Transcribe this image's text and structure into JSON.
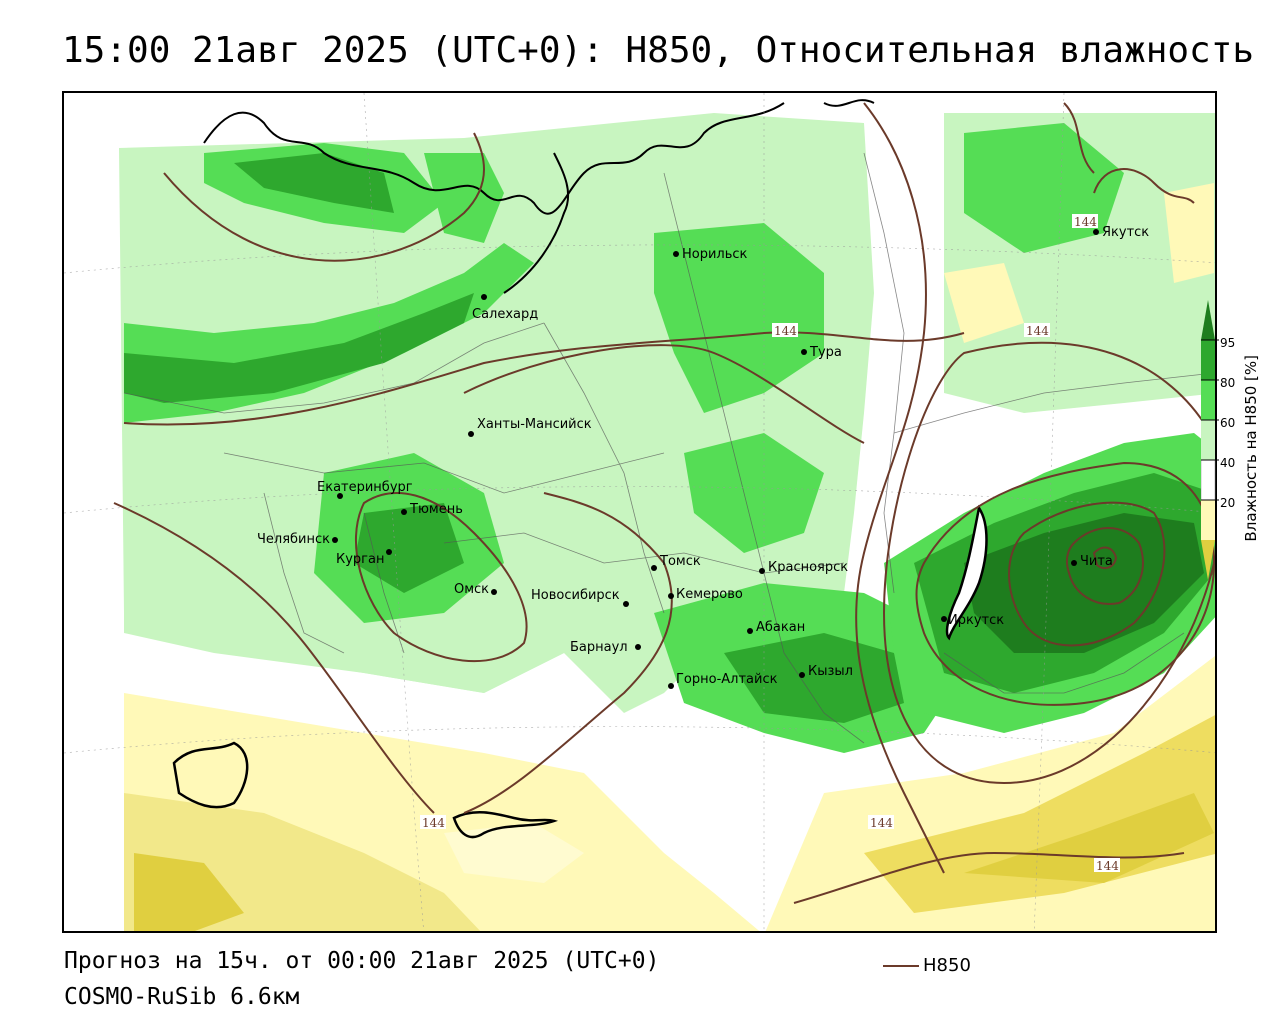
{
  "title": "15:00 21авг 2025 (UTC+0): H850, Относительная влажность",
  "footer": {
    "forecast": "Прогноз на 15ч. от 00:00 21авг 2025 (UTC+0)",
    "model": "COSMO-RuSib 6.6км",
    "legend_line_label": "H850"
  },
  "colorbar": {
    "title": "Влажность на H850 [%]",
    "ticks": [
      "95",
      "80",
      "60",
      "40",
      "20"
    ],
    "colors": {
      "c95": "#1e7d1e",
      "c80": "#2ea82e",
      "c60": "#55dd55",
      "c40": "#c8f5c0",
      "c20": "#fff9b8",
      "c0": "#e0cf40",
      "contour": "#6b3a2a"
    }
  },
  "cities": [
    {
      "name": "Якутск"
    },
    {
      "name": "Норильск"
    },
    {
      "name": "Салехард"
    },
    {
      "name": "Тура"
    },
    {
      "name": "Ханты-Мансийск"
    },
    {
      "name": "Екатеринбург"
    },
    {
      "name": "Тюмень"
    },
    {
      "name": "Челябинск"
    },
    {
      "name": "Курган"
    },
    {
      "name": "Омск"
    },
    {
      "name": "Новосибирск"
    },
    {
      "name": "Томск"
    },
    {
      "name": "Кемерово"
    },
    {
      "name": "Красноярск"
    },
    {
      "name": "Барнаул"
    },
    {
      "name": "Абакан"
    },
    {
      "name": "Иркутск"
    },
    {
      "name": "Чита"
    },
    {
      "name": "Кызыл"
    },
    {
      "name": "Горно-Алтайск"
    }
  ],
  "contour_labels": [
    "144",
    "144",
    "144",
    "144",
    "144",
    "144"
  ]
}
